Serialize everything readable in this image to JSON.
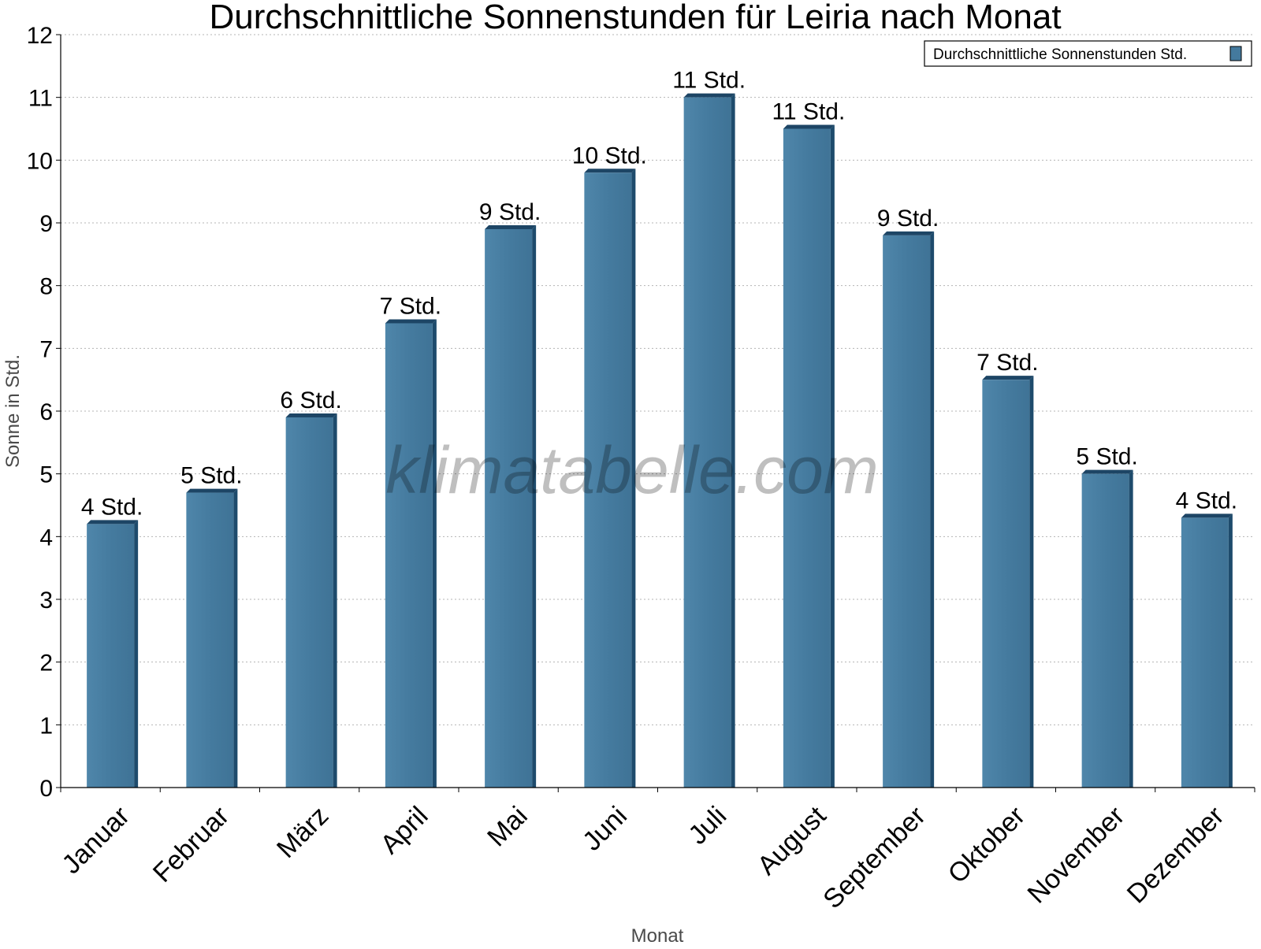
{
  "chart_data": {
    "type": "bar",
    "title": "Durchschnittliche Sonnenstunden für Leiria nach Monat",
    "xlabel": "Monat",
    "ylabel": "Sonne in Std.",
    "ylim": [
      0,
      12
    ],
    "ytick_step": 1,
    "grid": true,
    "legend_position": "top-right",
    "categories": [
      "Januar",
      "Februar",
      "März",
      "April",
      "Mai",
      "Juni",
      "Juli",
      "August",
      "September",
      "Oktober",
      "November",
      "Dezember"
    ],
    "series": [
      {
        "name": "Durchschnittliche Sonnenstunden Std.",
        "color": "#447a9e",
        "values": [
          4.2,
          4.7,
          5.9,
          7.4,
          8.9,
          9.8,
          11.0,
          10.5,
          8.8,
          6.5,
          5.0,
          4.3
        ],
        "labels": [
          "4 Std.",
          "5 Std.",
          "6 Std.",
          "7 Std.",
          "9 Std.",
          "10 Std.",
          "11 Std.",
          "11 Std.",
          "9 Std.",
          "7 Std.",
          "5 Std.",
          "4 Std."
        ]
      }
    ]
  },
  "watermark": "klimatabelle.com"
}
